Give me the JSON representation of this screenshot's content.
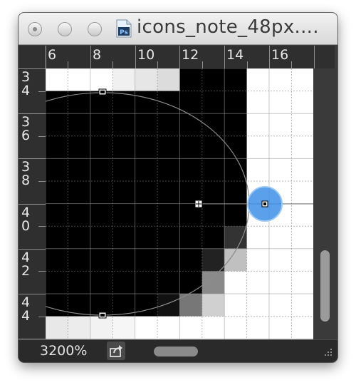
{
  "window": {
    "title": "icons_note_48px....",
    "file_type_icon": "photoshop-file-icon",
    "file_type_icon_label": "Ps"
  },
  "ruler": {
    "horizontal_labels": [
      "6",
      "8",
      "10",
      "12",
      "14",
      "16"
    ],
    "vertical_labels": [
      [
        "3",
        "4"
      ],
      [
        "3",
        "6"
      ],
      [
        "3",
        "8"
      ],
      [
        "4",
        "0"
      ],
      [
        "4",
        "2"
      ],
      [
        "4",
        "4"
      ]
    ]
  },
  "canvas": {
    "description_icon": "pixel-grid",
    "accent_color": "#3d8fe6"
  },
  "statusbar": {
    "zoom": "3200%",
    "share_icon": "share-icon"
  }
}
